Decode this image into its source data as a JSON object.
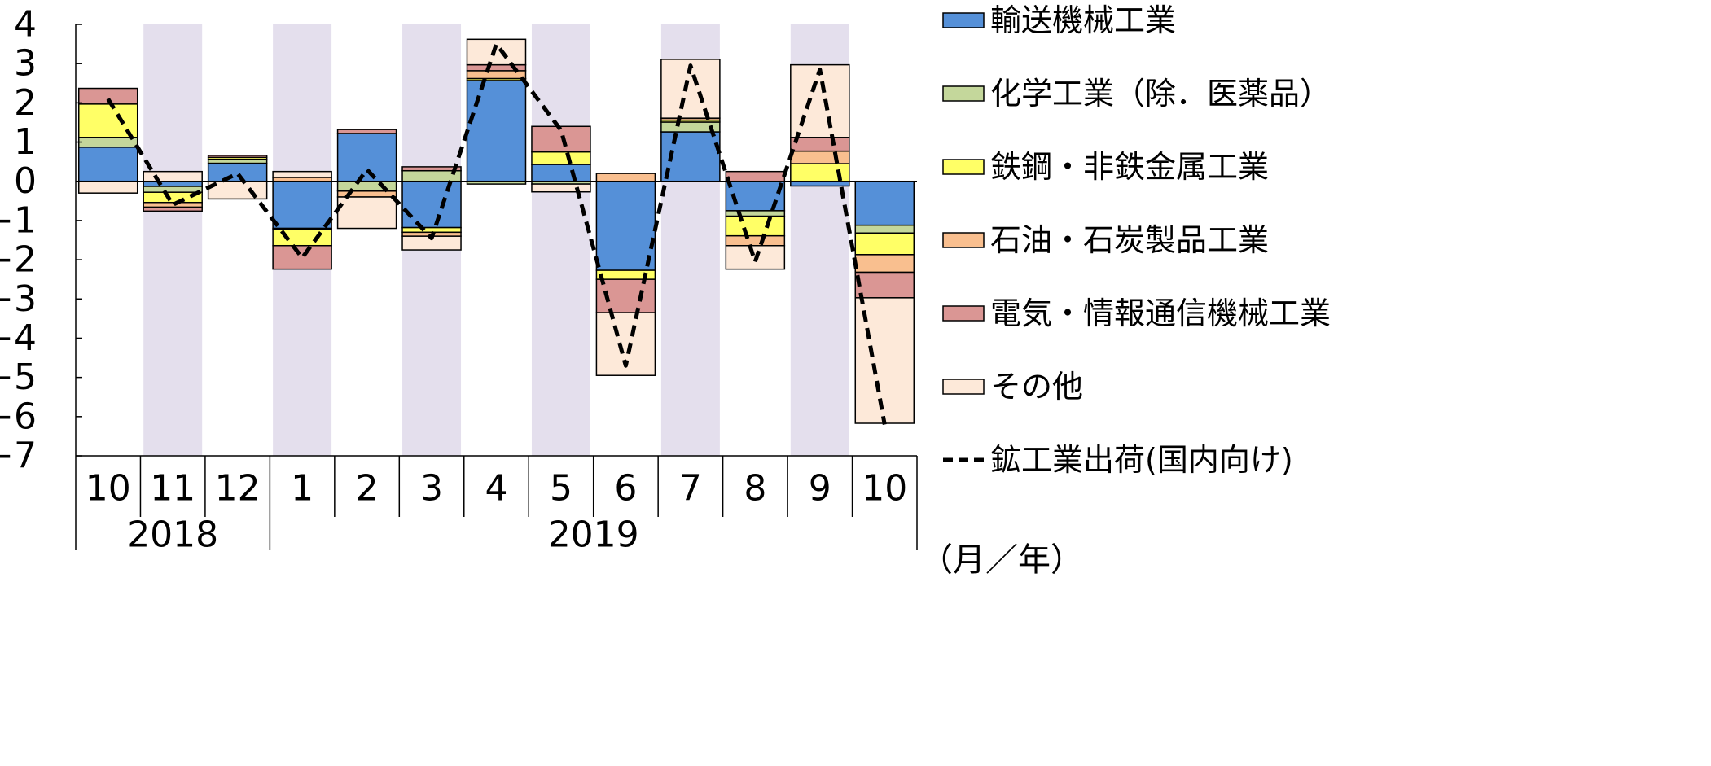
{
  "chart_data": {
    "type": "bar",
    "stacked": true,
    "categories": [
      "10",
      "11",
      "12",
      "1",
      "2",
      "3",
      "4",
      "5",
      "6",
      "7",
      "8",
      "9",
      "10"
    ],
    "years": [
      {
        "label": "2018",
        "span": 3
      },
      {
        "label": "2019",
        "span": 10
      }
    ],
    "x_unit_label": "（月／年）",
    "ylim": [
      -7,
      4
    ],
    "yticks": [
      "4",
      "3",
      "2",
      "1",
      "0",
      "−1",
      "−2",
      "−3",
      "−4",
      "−5",
      "−6",
      "−7"
    ],
    "shaded_categories": [
      1,
      3,
      5,
      7,
      9,
      11
    ],
    "shade_color": "#e4dfed",
    "series": [
      {
        "name": "輸送機械工業",
        "color": "#5590d8",
        "values": [
          0.87,
          -0.13,
          0.46,
          -1.2,
          1.22,
          -1.18,
          2.57,
          0.43,
          -2.27,
          1.26,
          -0.75,
          -0.12,
          -1.12
        ]
      },
      {
        "name": "化学工業（除．医薬品）",
        "color": "#c4d79b",
        "values": [
          0.25,
          -0.15,
          0.1,
          -0.02,
          -0.23,
          0.27,
          -0.07,
          -0.07,
          0.0,
          0.25,
          -0.14,
          0.0,
          -0.2
        ]
      },
      {
        "name": "鉄鋼・非鉄金属工業",
        "color": "#ffff66",
        "values": [
          0.85,
          -0.26,
          0.05,
          -0.42,
          -0.02,
          -0.12,
          0.05,
          0.32,
          -0.23,
          0.05,
          -0.5,
          0.45,
          -0.55
        ]
      },
      {
        "name": "石油・石炭製品工業",
        "color": "#f9bf8f",
        "values": [
          0.0,
          -0.12,
          0.0,
          0.1,
          -0.15,
          -0.1,
          0.2,
          0.0,
          0.2,
          0.05,
          -0.25,
          0.32,
          -0.45
        ]
      },
      {
        "name": "電気・情報通信機械工業",
        "color": "#da9694",
        "values": [
          0.4,
          -0.1,
          0.05,
          -0.6,
          0.1,
          0.1,
          0.15,
          0.65,
          -0.85,
          0.0,
          0.25,
          0.35,
          -0.65
        ]
      },
      {
        "name": "その他",
        "color": "#fde9d9",
        "values": [
          -0.3,
          0.25,
          -0.45,
          0.15,
          -0.8,
          -0.35,
          0.65,
          -0.2,
          -1.6,
          1.5,
          -0.6,
          1.85,
          -3.2
        ]
      }
    ],
    "line": {
      "name": "鉱工業出荷(国内向け)",
      "values": [
        2.1,
        -0.6,
        0.2,
        -1.95,
        0.3,
        -1.45,
        3.5,
        1.3,
        -4.7,
        2.95,
        -2.05,
        2.85,
        -6.2
      ]
    }
  }
}
